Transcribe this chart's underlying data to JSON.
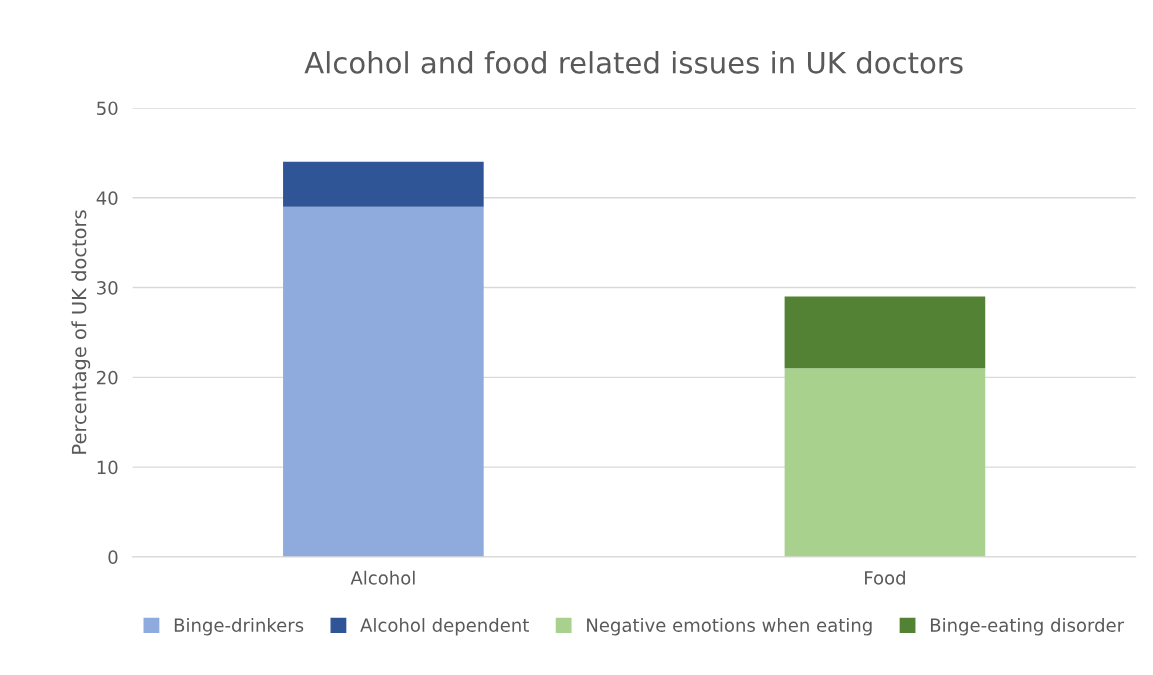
{
  "chart_data": {
    "type": "bar",
    "title": "Alcohol and food related issues in UK doctors",
    "ylabel": "Percentage of UK doctors",
    "categories": [
      "Alcohol",
      "Food"
    ],
    "stacked": true,
    "series": [
      {
        "name": "Binge-drinkers",
        "color": "#8faadc",
        "values": [
          39,
          null
        ]
      },
      {
        "name": "Alcohol dependent",
        "color": "#2f5597",
        "values": [
          5,
          null
        ]
      },
      {
        "name": "Negative emotions when eating",
        "color": "#a9d18e",
        "values": [
          null,
          21
        ]
      },
      {
        "name": "Binge-eating disorder",
        "color": "#548235",
        "values": [
          null,
          8
        ]
      }
    ],
    "ylim": [
      0,
      50
    ],
    "yticks": [
      0,
      10,
      20,
      30,
      40,
      50
    ],
    "grid": "y",
    "legend": "bottom"
  }
}
